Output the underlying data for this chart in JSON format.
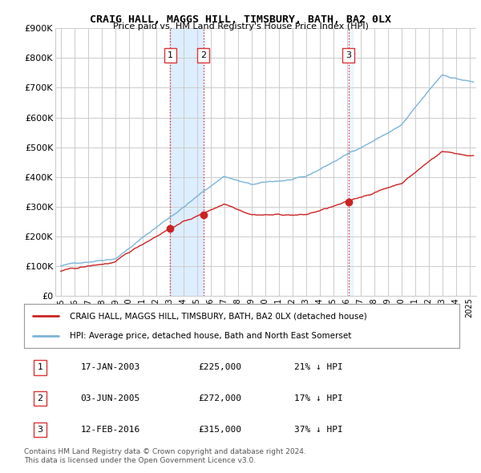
{
  "title": "CRAIG HALL, MAGGS HILL, TIMSBURY, BATH, BA2 0LX",
  "subtitle": "Price paid vs. HM Land Registry's House Price Index (HPI)",
  "legend_line1": "CRAIG HALL, MAGGS HILL, TIMSBURY, BATH, BA2 0LX (detached house)",
  "legend_line2": "HPI: Average price, detached house, Bath and North East Somerset",
  "footnote1": "Contains HM Land Registry data © Crown copyright and database right 2024.",
  "footnote2": "This data is licensed under the Open Government Licence v3.0.",
  "transactions": [
    {
      "num": 1,
      "date": "17-JAN-2003",
      "price": "£225,000",
      "pct": "21% ↓ HPI",
      "year": 2003.04
    },
    {
      "num": 2,
      "date": "03-JUN-2005",
      "price": "£272,000",
      "pct": "17% ↓ HPI",
      "year": 2005.46
    },
    {
      "num": 3,
      "date": "12-FEB-2016",
      "price": "£315,000",
      "pct": "37% ↓ HPI",
      "year": 2016.12
    }
  ],
  "hpi_color": "#7ab4d8",
  "price_color": "#cc2222",
  "vline_color": "#dd3333",
  "shade_color": "#ddeeff",
  "background_color": "#ffffff",
  "grid_color": "#cccccc",
  "ylim": [
    0,
    900000
  ],
  "yticks": [
    0,
    100000,
    200000,
    300000,
    400000,
    500000,
    600000,
    700000,
    800000,
    900000
  ],
  "ytick_labels": [
    "£0",
    "£100K",
    "£200K",
    "£300K",
    "£400K",
    "£500K",
    "£600K",
    "£700K",
    "£800K",
    "£900K"
  ],
  "xlim_start": 1994.6,
  "xlim_end": 2025.5
}
